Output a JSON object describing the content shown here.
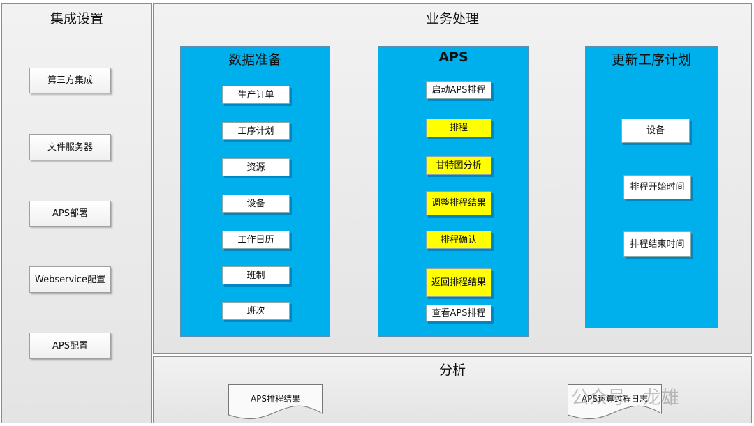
{
  "integration": {
    "title": "集成设置",
    "items": [
      "第三方集成",
      "文件服务器",
      "APS部署",
      "Webservice配置",
      "APS配置"
    ]
  },
  "business": {
    "title": "业务处理",
    "columns": [
      {
        "title": "数据准备",
        "items": [
          {
            "label": "生产订单"
          },
          {
            "label": "工序计划"
          },
          {
            "label": "资源"
          },
          {
            "label": "设备"
          },
          {
            "label": "工作日历"
          },
          {
            "label": "班制"
          },
          {
            "label": "班次"
          }
        ]
      },
      {
        "title": "APS",
        "items": [
          {
            "label": "启动APS排程",
            "highlight": false
          },
          {
            "label": "排程",
            "highlight": true
          },
          {
            "label": "甘特图分析",
            "highlight": true
          },
          {
            "label": "调整排程结果",
            "highlight": true
          },
          {
            "label": "排程确认",
            "highlight": true
          },
          {
            "label": "返回排程结果",
            "highlight": true
          },
          {
            "label": "查看APS排程",
            "highlight": false
          }
        ]
      },
      {
        "title": "更新工序计划",
        "items": [
          {
            "label": "设备"
          },
          {
            "label": "排程开始时间"
          },
          {
            "label": "排程结束时间"
          }
        ]
      }
    ]
  },
  "analysis": {
    "title": "分析",
    "documents": [
      "APS排程结果",
      "APS运算过程日志"
    ]
  },
  "watermark": "公众号 · 龙雄",
  "colors": {
    "column_fill": "#00b0ec",
    "highlight": "#ffff00",
    "panel": "#ececec"
  }
}
